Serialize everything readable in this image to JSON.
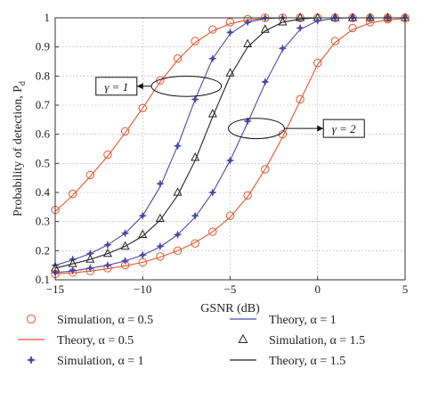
{
  "chart_data": {
    "type": "line",
    "xlabel": "GSNR (dB)",
    "ylabel": "Probability of detection, P",
    "ylabel_sub": "d",
    "xlim": [
      -15,
      5
    ],
    "ylim": [
      0.1,
      1
    ],
    "xticks": [
      -15,
      -10,
      -5,
      0,
      5
    ],
    "yticks": [
      0.1,
      0.2,
      0.3,
      0.4,
      0.5,
      0.6,
      0.7,
      0.8,
      0.9,
      1
    ],
    "grid": "dotted",
    "colors": {
      "orange": "#e2572d",
      "blue": "#4a4aa8",
      "black": "#222222"
    },
    "series": [
      {
        "name": "Simulation, α = 0.5",
        "kind": "marker",
        "marker": "circle",
        "color": "#e2572d",
        "x": [
          -15,
          -14,
          -13,
          -12,
          -11,
          -10,
          -9,
          -8,
          -7,
          -6,
          -5,
          -4,
          -3,
          -2,
          -1,
          0,
          1,
          2,
          3,
          4,
          5
        ],
        "y": [
          0.34,
          0.395,
          0.46,
          0.53,
          0.61,
          0.69,
          0.785,
          0.86,
          0.92,
          0.96,
          0.985,
          0.995,
          1,
          1,
          1,
          1,
          1,
          1,
          1,
          1,
          1
        ]
      },
      {
        "name": "Theory, α = 0.5",
        "kind": "line",
        "color": "#e2572d",
        "x": [
          -15,
          -14,
          -13,
          -12,
          -11,
          -10,
          -9,
          -8,
          -7,
          -6,
          -5,
          -4,
          -3,
          -2,
          -1,
          0,
          1,
          2,
          3,
          4,
          5
        ],
        "y": [
          0.335,
          0.39,
          0.455,
          0.525,
          0.605,
          0.69,
          0.78,
          0.855,
          0.915,
          0.955,
          0.98,
          0.993,
          0.998,
          1,
          1,
          1,
          1,
          1,
          1,
          1,
          1
        ]
      },
      {
        "name": "Simulation, α = 1",
        "kind": "marker",
        "marker": "star",
        "color": "#4a4aa8",
        "x": [
          -15,
          -14,
          -13,
          -12,
          -11,
          -10,
          -9,
          -8,
          -7,
          -6,
          -5,
          -4,
          -3,
          -2,
          -1,
          0,
          1,
          2,
          3,
          4,
          5
        ],
        "y": [
          0.15,
          0.17,
          0.19,
          0.22,
          0.26,
          0.32,
          0.43,
          0.56,
          0.72,
          0.86,
          0.95,
          0.985,
          1,
          1,
          1,
          1,
          1,
          1,
          1,
          1,
          1
        ]
      },
      {
        "name": "Theory, α = 1",
        "kind": "line",
        "color": "#4a4aa8",
        "x": [
          -15,
          -14,
          -13,
          -12,
          -11,
          -10,
          -9,
          -8,
          -7,
          -6,
          -5,
          -4,
          -3,
          -2,
          -1,
          0,
          1,
          2,
          3,
          4,
          5
        ],
        "y": [
          0.15,
          0.168,
          0.19,
          0.22,
          0.26,
          0.32,
          0.42,
          0.56,
          0.72,
          0.86,
          0.945,
          0.985,
          0.997,
          1,
          1,
          1,
          1,
          1,
          1,
          1,
          1
        ]
      },
      {
        "name": "Simulation, α = 1.5",
        "kind": "marker",
        "marker": "triangle",
        "color": "#222222",
        "x": [
          -15,
          -14,
          -13,
          -12,
          -11,
          -10,
          -9,
          -8,
          -7,
          -6,
          -5,
          -4,
          -3,
          -2,
          -1,
          0,
          1,
          2,
          3,
          4,
          5
        ],
        "y": [
          0.14,
          0.155,
          0.17,
          0.19,
          0.215,
          0.255,
          0.31,
          0.4,
          0.52,
          0.67,
          0.81,
          0.91,
          0.96,
          0.985,
          1,
          1,
          1,
          1,
          1,
          1,
          1
        ]
      },
      {
        "name": "Theory, α = 1.5",
        "kind": "line",
        "color": "#222222",
        "x": [
          -15,
          -14,
          -13,
          -12,
          -11,
          -10,
          -9,
          -8,
          -7,
          -6,
          -5,
          -4,
          -3,
          -2,
          -1,
          0,
          1,
          2,
          3,
          4,
          5
        ],
        "y": [
          0.14,
          0.155,
          0.17,
          0.19,
          0.215,
          0.25,
          0.305,
          0.39,
          0.51,
          0.66,
          0.8,
          0.9,
          0.955,
          0.985,
          0.996,
          1,
          1,
          1,
          1,
          1,
          1
        ]
      },
      {
        "name": "",
        "group": "γ = 2",
        "kind": "marker",
        "marker": "circle",
        "color": "#e2572d",
        "x": [
          -15,
          -14,
          -13,
          -12,
          -11,
          -10,
          -9,
          -8,
          -7,
          -6,
          -5,
          -4,
          -3,
          -2,
          -1,
          0,
          1,
          2,
          3,
          4,
          5
        ],
        "y": [
          0.12,
          0.125,
          0.13,
          0.14,
          0.15,
          0.16,
          0.18,
          0.2,
          0.225,
          0.265,
          0.32,
          0.39,
          0.48,
          0.6,
          0.72,
          0.845,
          0.92,
          0.965,
          0.985,
          0.995,
          1
        ]
      },
      {
        "name": "",
        "group": "γ = 2",
        "kind": "line",
        "color": "#e2572d",
        "x": [
          -15,
          -14,
          -13,
          -12,
          -11,
          -10,
          -9,
          -8,
          -7,
          -6,
          -5,
          -4,
          -3,
          -2,
          -1,
          0,
          1,
          2,
          3,
          4,
          5
        ],
        "y": [
          0.12,
          0.124,
          0.13,
          0.138,
          0.148,
          0.16,
          0.178,
          0.2,
          0.228,
          0.265,
          0.315,
          0.385,
          0.48,
          0.59,
          0.715,
          0.84,
          0.915,
          0.96,
          0.982,
          0.993,
          0.998
        ]
      },
      {
        "name": "",
        "group": "γ = 2",
        "kind": "marker",
        "marker": "star",
        "color": "#4a4aa8",
        "x": [
          -15,
          -14,
          -13,
          -12,
          -11,
          -10,
          -9,
          -8,
          -7,
          -6,
          -5,
          -4,
          -3,
          -2,
          -1,
          0,
          1,
          2,
          3,
          4,
          5
        ],
        "y": [
          0.125,
          0.132,
          0.14,
          0.15,
          0.165,
          0.185,
          0.215,
          0.255,
          0.32,
          0.4,
          0.51,
          0.645,
          0.78,
          0.895,
          0.965,
          0.99,
          1,
          1,
          1,
          1,
          1
        ]
      },
      {
        "name": "",
        "group": "γ = 2",
        "kind": "line",
        "color": "#4a4aa8",
        "x": [
          -15,
          -14,
          -13,
          -12,
          -11,
          -10,
          -9,
          -8,
          -7,
          -6,
          -5,
          -4,
          -3,
          -2,
          -1,
          0,
          1,
          2,
          3,
          4,
          5
        ],
        "y": [
          0.125,
          0.13,
          0.14,
          0.15,
          0.165,
          0.185,
          0.213,
          0.255,
          0.315,
          0.4,
          0.51,
          0.64,
          0.775,
          0.89,
          0.96,
          0.99,
          0.998,
          1,
          1,
          1,
          1
        ]
      }
    ],
    "annotations": [
      {
        "label": "γ = 1",
        "ellipse_center": [
          -7.5,
          0.765
        ],
        "ellipse_rx": 2.0,
        "ellipse_ry": 0.035,
        "box_at": [
          -11.5,
          0.765
        ]
      },
      {
        "label": "γ = 2",
        "ellipse_center": [
          -3.5,
          0.62
        ],
        "ellipse_rx": 1.6,
        "ellipse_ry": 0.035,
        "box_at": [
          1.5,
          0.62
        ]
      }
    ],
    "legend": {
      "position": "bottom",
      "columns": 2,
      "entries": [
        {
          "label": "Simulation, α = 0.5",
          "marker": "circle",
          "line": false,
          "color": "#e2572d"
        },
        {
          "label": "Theory, α = 1",
          "marker": "none",
          "line": true,
          "color": "#4a4aa8"
        },
        {
          "label": "Theory, α = 0.5",
          "marker": "none",
          "line": true,
          "color": "#e2572d"
        },
        {
          "label": "Simulation, α = 1.5",
          "marker": "triangle",
          "line": false,
          "color": "#222222"
        },
        {
          "label": "Simulation, α = 1",
          "marker": "star",
          "line": false,
          "color": "#4a4aa8"
        },
        {
          "label": "Theory, α = 1.5",
          "marker": "none",
          "line": true,
          "color": "#222222"
        }
      ]
    }
  }
}
